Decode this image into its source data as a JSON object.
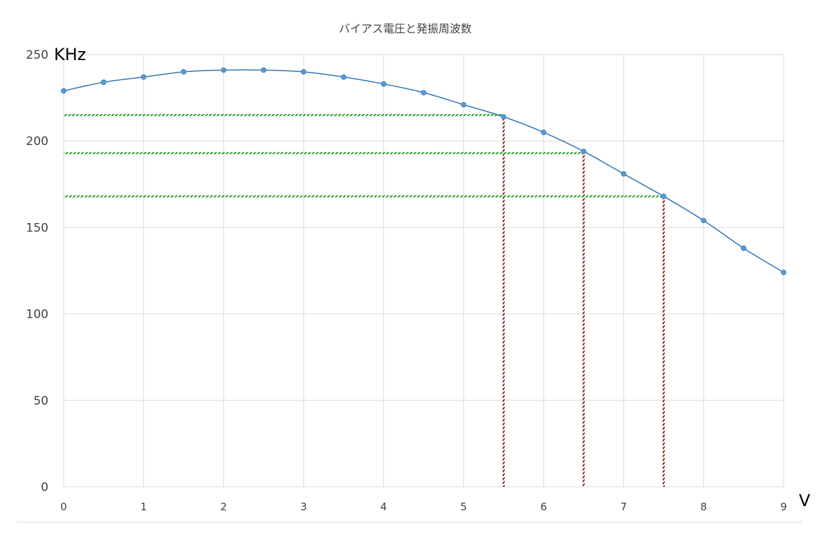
{
  "chart_data": {
    "type": "line",
    "title": "バイアス電圧と発振周波数",
    "xlabel": "V",
    "ylabel": "KHz",
    "xlim": [
      0,
      9
    ],
    "ylim": [
      0,
      250
    ],
    "x_ticks": [
      "0",
      "1",
      "2",
      "3",
      "4",
      "5",
      "6",
      "7",
      "8",
      "9"
    ],
    "y_ticks": [
      "0",
      "50",
      "100",
      "150",
      "200",
      "250"
    ],
    "grid": true,
    "legend": "none",
    "series": [
      {
        "x": [
          0,
          0.5,
          1,
          1.5,
          2,
          2.5,
          3,
          3.5,
          4,
          4.5,
          5,
          5.5,
          6,
          6.5,
          7,
          7.5,
          8,
          8.5,
          9
        ],
        "y": [
          229,
          234,
          237,
          240,
          241,
          241,
          240,
          237,
          233,
          228,
          221,
          214,
          205,
          194,
          181,
          168,
          154,
          138,
          124
        ]
      }
    ],
    "reference_lines": [
      {
        "x": 5.5,
        "y": 215
      },
      {
        "x": 6.5,
        "y": 193
      },
      {
        "x": 7.5,
        "y": 168
      }
    ],
    "colors": {
      "series": "#5b9bd5",
      "series_line": "#2e75b6",
      "horizontal_ref": "#1e9e1e",
      "vertical_ref": "#8b1a1a",
      "grid": "#d9d9d9",
      "text": "#404040"
    }
  }
}
